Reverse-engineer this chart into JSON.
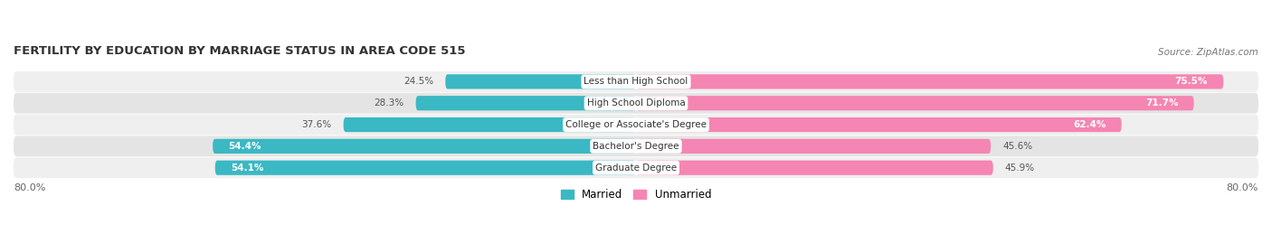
{
  "title": "FERTILITY BY EDUCATION BY MARRIAGE STATUS IN AREA CODE 515",
  "source": "Source: ZipAtlas.com",
  "categories": [
    "Less than High School",
    "High School Diploma",
    "College or Associate's Degree",
    "Bachelor's Degree",
    "Graduate Degree"
  ],
  "married": [
    24.5,
    28.3,
    37.6,
    54.4,
    54.1
  ],
  "unmarried": [
    75.5,
    71.7,
    62.4,
    45.6,
    45.9
  ],
  "married_color": "#3ab8c3",
  "unmarried_color": "#f585b2",
  "row_bg_even": "#efefef",
  "row_bg_odd": "#e4e4e4",
  "label_bg_color": "#ffffff",
  "married_label": "Married",
  "unmarried_label": "Unmarried",
  "x_left_label": "80.0%",
  "x_right_label": "80.0%",
  "axis_limit": 80,
  "figsize": [
    14.06,
    2.69
  ],
  "dpi": 100
}
